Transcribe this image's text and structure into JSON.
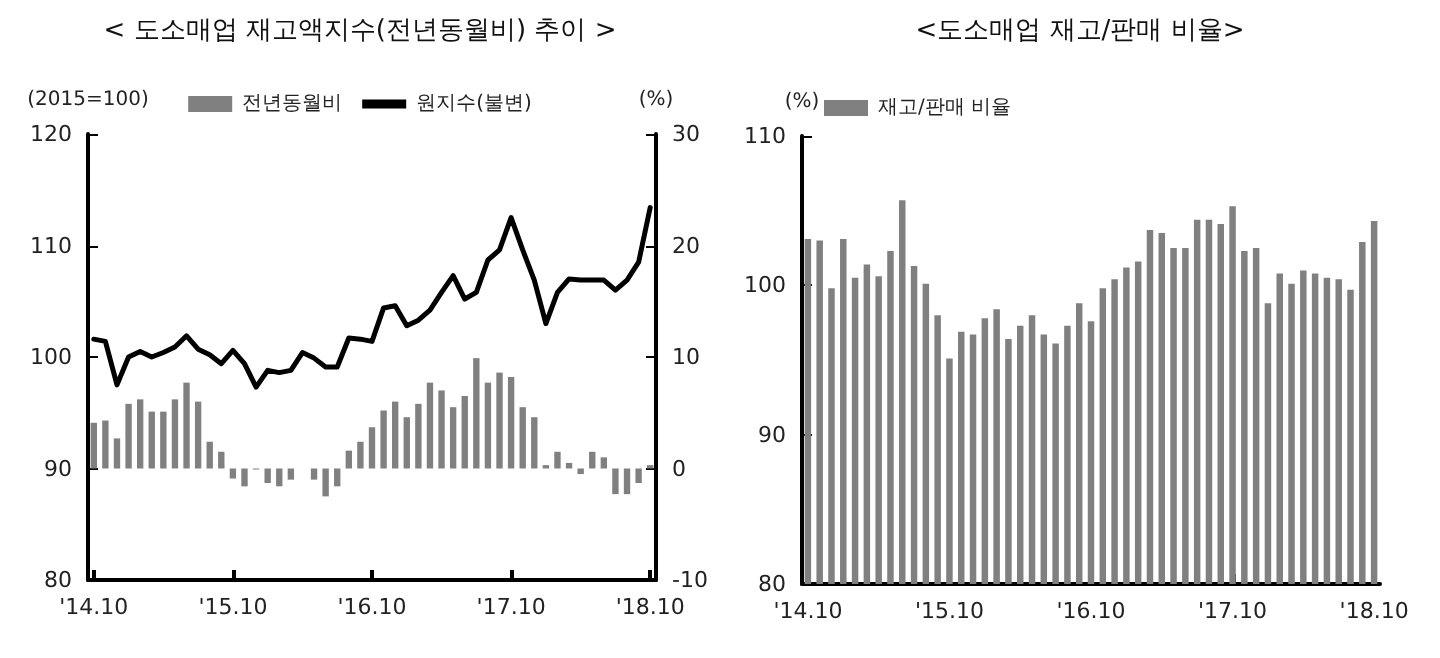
{
  "chart_data": [
    {
      "type": "bar",
      "title": "< 도소매업 재고액지수(전년동월비) 추이 >",
      "ylabel": "(2015=100)",
      "y2label": "(%)",
      "categories": [
        "'14.10",
        null,
        null,
        null,
        null,
        null,
        null,
        null,
        null,
        null,
        null,
        null,
        "'15.10",
        null,
        null,
        null,
        null,
        null,
        null,
        null,
        null,
        null,
        null,
        null,
        "'16.10",
        null,
        null,
        null,
        null,
        null,
        null,
        null,
        null,
        null,
        null,
        null,
        "'17.10",
        null,
        null,
        null,
        null,
        null,
        null,
        null,
        null,
        null,
        null,
        null,
        "'18.10"
      ],
      "series": [
        {
          "name": "전년동월비",
          "color": "#808080",
          "axis": "y2",
          "values": [
            4.1,
            4.3,
            2.7,
            5.8,
            6.2,
            5.1,
            5.1,
            6.2,
            7.7,
            6.0,
            2.4,
            1.5,
            -0.9,
            -1.6,
            -0.1,
            -1.3,
            -1.6,
            -1.0,
            null,
            -1.0,
            -2.5,
            -1.6,
            1.6,
            2.4,
            3.7,
            5.2,
            6.0,
            4.6,
            5.8,
            7.7,
            7.0,
            5.5,
            6.5,
            9.9,
            7.7,
            8.6,
            8.2,
            5.5,
            4.6,
            0.3,
            1.5,
            0.5,
            -0.5,
            1.5,
            1.0,
            -2.3,
            -2.3,
            -1.3,
            0.3
          ]
        },
        {
          "name": "원지수(불변)",
          "type": "line",
          "color": "#000000",
          "axis": "y",
          "values": [
            101.6,
            101.4,
            97.5,
            100.0,
            100.5,
            100.0,
            100.4,
            100.9,
            101.9,
            100.7,
            100.2,
            99.4,
            100.6,
            99.4,
            97.3,
            98.8,
            98.6,
            98.8,
            100.4,
            99.9,
            99.1,
            99.1,
            101.7,
            101.6,
            101.4,
            104.4,
            104.6,
            102.8,
            103.3,
            104.2,
            105.8,
            107.3,
            105.2,
            105.8,
            108.7,
            109.6,
            112.5,
            109.6,
            106.9,
            103.0,
            105.8,
            107.0,
            106.9,
            106.9,
            106.9,
            106.0,
            106.9,
            108.5,
            113.4
          ]
        }
      ],
      "ylim": [
        80,
        120
      ],
      "yticks": [
        80,
        90,
        100,
        110,
        120
      ],
      "y2lim": [
        -10,
        30
      ],
      "y2ticks": [
        -10,
        0,
        10,
        20,
        30
      ],
      "legend": "top",
      "grid": false
    },
    {
      "type": "bar",
      "title": "<도소매업 재고/판매 비율>",
      "ylabel": "(%)",
      "categories": [
        "'14.10",
        null,
        null,
        null,
        null,
        null,
        null,
        null,
        null,
        null,
        null,
        null,
        "'15.10",
        null,
        null,
        null,
        null,
        null,
        null,
        null,
        null,
        null,
        null,
        null,
        "'16.10",
        null,
        null,
        null,
        null,
        null,
        null,
        null,
        null,
        null,
        null,
        null,
        "'17.10",
        null,
        null,
        null,
        null,
        null,
        null,
        null,
        null,
        null,
        null,
        null,
        "'18.10"
      ],
      "series": [
        {
          "name": "재고/판매 비율",
          "color": "#808080",
          "values": [
            103.1,
            103.0,
            99.8,
            103.1,
            100.5,
            101.4,
            100.6,
            102.3,
            105.7,
            101.3,
            100.1,
            98.0,
            95.1,
            96.9,
            96.7,
            97.8,
            98.4,
            96.4,
            97.3,
            98.0,
            96.7,
            96.1,
            97.3,
            98.8,
            97.6,
            99.8,
            100.4,
            101.2,
            101.6,
            103.7,
            103.5,
            102.5,
            102.5,
            104.4,
            104.4,
            104.1,
            105.3,
            102.3,
            102.5,
            98.8,
            100.8,
            100.1,
            101.0,
            100.8,
            100.5,
            100.4,
            99.7,
            102.9,
            104.3
          ]
        }
      ],
      "ylim": [
        80,
        110
      ],
      "yticks": [
        80,
        90,
        100,
        110
      ],
      "legend": "top left",
      "grid": false
    }
  ]
}
